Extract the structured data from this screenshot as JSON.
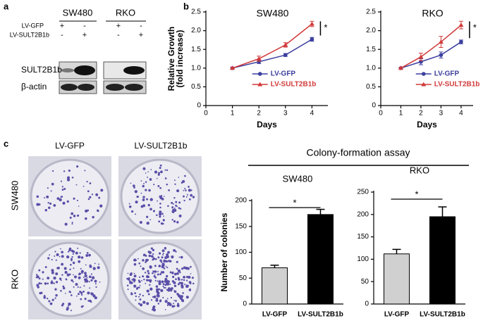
{
  "panel_labels": [
    "a",
    "b",
    "c"
  ],
  "blot": {
    "cell_lines": [
      "SW480",
      "RKO"
    ],
    "rows": [
      "LV-GFP",
      "LV-SULT2B1b"
    ],
    "signs": [
      [
        "+",
        "-",
        "+",
        "-"
      ],
      [
        "-",
        "+",
        "-",
        "+"
      ]
    ],
    "bands": [
      "SULT2B1b",
      "β-actin"
    ]
  },
  "colony_photos": {
    "columns": [
      "LV-GFP",
      "LV-SULT2B1b"
    ],
    "rows": [
      "SW480",
      "RKO"
    ]
  },
  "colony_header": "Colony-formation assay",
  "chart_data": [
    {
      "type": "line",
      "title": "SW480",
      "xlabel": "Days",
      "ylabel": [
        "Relative Growth",
        "(fold increase)"
      ],
      "annotation": "*",
      "x": [
        1,
        2,
        3,
        4
      ],
      "xlim": [
        0,
        4.6
      ],
      "xticks": [
        0,
        1,
        2,
        3,
        4
      ],
      "ylim": [
        0,
        2.5
      ],
      "yticks": [
        0,
        0.5,
        {
          "value": 1,
          "label": "1.0"
        },
        1.5,
        {
          "value": 2,
          "label": "2.0"
        },
        2.5
      ],
      "series": [
        {
          "name": "LV-GFP",
          "color": "#3b3f9e",
          "marker": "circle",
          "values": [
            1,
            1.17,
            1.35,
            1.77
          ],
          "errors": [
            0.02,
            0.05,
            0.04,
            0.05
          ]
        },
        {
          "name": "LV-SULT2B1b",
          "color": "#d23a3a",
          "marker": "triangle",
          "values": [
            1,
            1.25,
            1.62,
            2.18
          ],
          "errors": [
            0.02,
            0.07,
            0.06,
            0.07
          ]
        }
      ]
    },
    {
      "type": "line",
      "title": "RKO",
      "xlabel": "Days",
      "annotation": "*",
      "x": [
        1,
        2,
        3,
        4
      ],
      "xlim": [
        0,
        4.6
      ],
      "xticks": [
        0,
        1,
        2,
        3,
        4
      ],
      "ylim": [
        0,
        2.5
      ],
      "yticks": [
        0,
        0.5,
        {
          "value": 1,
          "label": "1.0"
        },
        1.5,
        {
          "value": 2,
          "label": "2.0"
        },
        2.5
      ],
      "series": [
        {
          "name": "LV-GFP",
          "color": "#3b3f9e",
          "marker": "circle",
          "values": [
            1,
            1.17,
            1.35,
            1.7
          ],
          "errors": [
            0.02,
            0.08,
            0.08,
            0.05
          ]
        },
        {
          "name": "LV-SULT2B1b",
          "color": "#d23a3a",
          "marker": "triangle",
          "values": [
            1,
            1.3,
            1.7,
            2.15
          ],
          "errors": [
            0.02,
            0.1,
            0.15,
            0.1
          ]
        }
      ]
    },
    {
      "type": "bar",
      "title": "SW480",
      "ylabel": "Number of colonies",
      "annotation": "*",
      "categories": [
        "LV-GFP",
        "LV-SULT2B1b"
      ],
      "values": [
        70,
        173
      ],
      "errors": [
        5,
        10
      ],
      "colors": [
        "#d0d0d0",
        "#000000"
      ],
      "ylim": [
        0,
        200
      ],
      "yticks": [
        0,
        50,
        100,
        150,
        200
      ]
    },
    {
      "type": "bar",
      "title": "RKO",
      "annotation": "*",
      "categories": [
        "LV-GFP",
        "LV-SULT2B1b"
      ],
      "values": [
        112,
        195
      ],
      "errors": [
        10,
        22
      ],
      "colors": [
        "#d0d0d0",
        "#000000"
      ],
      "ylim": [
        0,
        250
      ],
      "yticks": [
        0,
        50,
        100,
        150,
        200,
        250
      ]
    }
  ]
}
